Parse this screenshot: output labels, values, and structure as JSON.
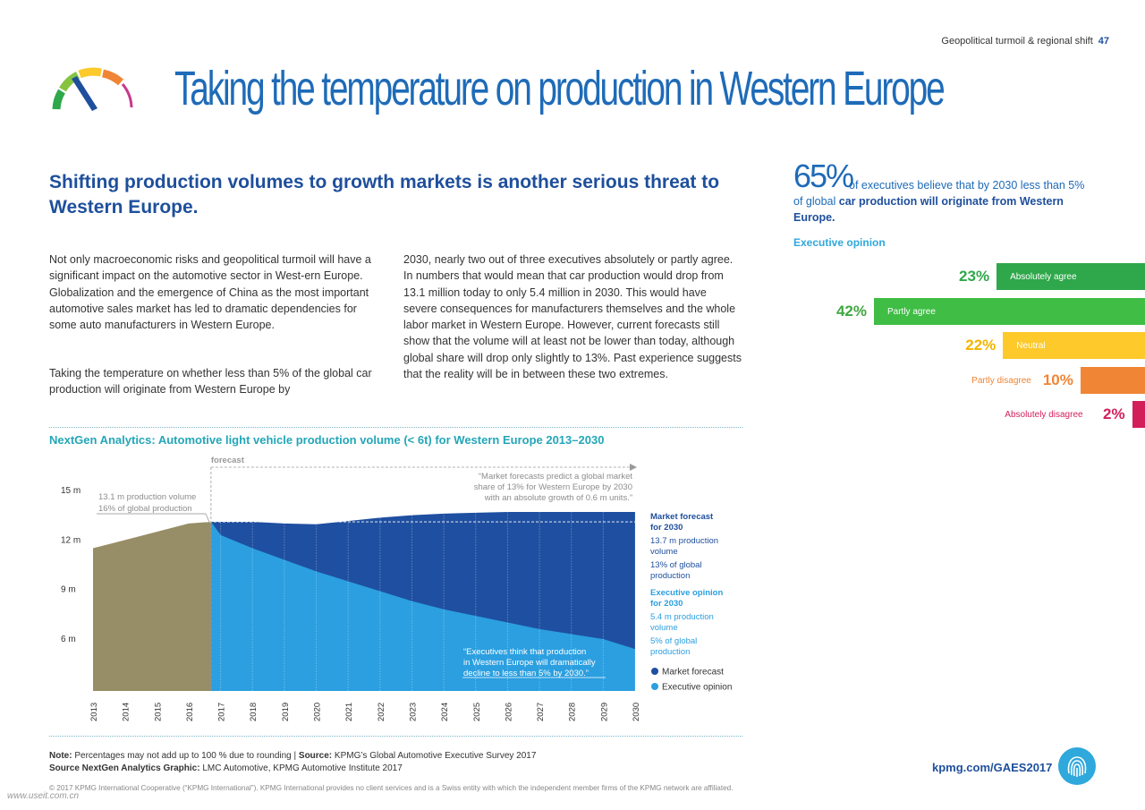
{
  "header": {
    "section": "Geopolitical turmoil & regional shift",
    "page_number": "47"
  },
  "title": "Taking the temperature on production in Western Europe",
  "icon": "thermometer-gauge-icon",
  "headline": "Shifting production volumes to growth markets is another serious threat to Western Europe.",
  "body": {
    "col1_p1": "Not only macroeconomic risks and geopolitical turmoil will have a significant impact on the automotive sector in West-ern Europe. Globalization and the emergence of China as the most important automotive sales market has led to dramatic dependencies for some auto manufacturers in Western Europe.",
    "col1_p2": "Taking the temperature on whether less than 5% of the global car production will originate from Western Europe by",
    "col2": "2030, nearly two out of three executives absolutely or partly agree. In numbers that would mean that car production would drop from 13.1 million today to only 5.4 million in 2030. This would have severe consequences for manufacturers themselves and the whole labor market in Western Europe. However, current forecasts still show that the volume will at least not be lower than today, although global share will drop only slightly to 13%. Past experience suggests that the reality will be in between these two extremes."
  },
  "stat": {
    "big": "65%",
    "lead": "of executives believe that by 2030 less than 5% of global",
    "bold": "car production will originate from Western Europe."
  },
  "opinion": {
    "title": "Executive opinion",
    "bars": [
      {
        "label": "Absolutely agree",
        "pct": "23%",
        "value": 23,
        "color": "#2ea84a",
        "pct_color": "#2ea84a",
        "label_color": "#ffffff",
        "label_inside": true
      },
      {
        "label": "Partly agree",
        "pct": "42%",
        "value": 42,
        "color": "#3fbd45",
        "pct_color": "#3fa83f",
        "label_color": "#ffffff",
        "label_inside": true
      },
      {
        "label": "Neutral",
        "pct": "22%",
        "value": 22,
        "color": "#fdc92b",
        "pct_color": "#f4b400",
        "label_color": "#ffffff",
        "label_inside": true
      },
      {
        "label": "Partly disagree",
        "pct": "10%",
        "value": 10,
        "color": "#f08536",
        "pct_color": "#f08536",
        "label_color": "#f08536",
        "label_inside": false
      },
      {
        "label": "Absolutely disagree",
        "pct": "2%",
        "value": 2,
        "color": "#d21f5a",
        "pct_color": "#d21f5a",
        "label_color": "#d21f5a",
        "label_inside": false
      }
    ]
  },
  "chart_data": {
    "type": "area",
    "title": "NextGen Analytics: Automotive light vehicle production volume (< 6t) for Western Europe 2013–2030",
    "x": [
      2013,
      2014,
      2015,
      2016,
      2017,
      2018,
      2019,
      2020,
      2021,
      2022,
      2023,
      2024,
      2025,
      2026,
      2027,
      2028,
      2029,
      2030
    ],
    "ytick_labels": [
      "6 m",
      "9 m",
      "12 m",
      "15 m"
    ],
    "ytick_values": [
      6,
      9,
      12,
      15
    ],
    "ylim": [
      3.4,
      15
    ],
    "series": [
      {
        "name": "Market forecast",
        "color": "#1f4fa0",
        "x": [
          2013,
          2014,
          2015,
          2016,
          2017,
          2018,
          2019,
          2020,
          2021,
          2022,
          2023,
          2024,
          2025,
          2026,
          2027,
          2028,
          2029,
          2030
        ],
        "values": [
          11.5,
          12,
          12.5,
          13,
          13.1,
          13.1,
          13,
          12.95,
          13.15,
          13.35,
          13.5,
          13.6,
          13.65,
          13.7,
          13.7,
          13.7,
          13.7,
          13.7
        ]
      },
      {
        "name": "Executive opinion",
        "color": "#2b9fe0",
        "x": [
          2016.7,
          2017,
          2018,
          2019,
          2020,
          2021,
          2022,
          2023,
          2024,
          2025,
          2026,
          2027,
          2028,
          2029,
          2030
        ],
        "values": [
          13.1,
          12.3,
          11.5,
          10.8,
          10.1,
          9.5,
          8.9,
          8.3,
          7.8,
          7.4,
          7,
          6.6,
          6.3,
          6,
          5.4
        ]
      }
    ],
    "history_color": "#978d66",
    "forecast_label": "forecast",
    "callouts": {
      "history": [
        "13.1 m production volume",
        "16% of global production"
      ],
      "market": [
        "“Market forecasts predict a global market",
        "share of 13% for Western Europe by 2030",
        "with an absolute growth of 0.6 m units.”"
      ],
      "exec": [
        "“Executives think that production",
        "in Western Europe will dramatically",
        "decline to less than 5% by 2030.”"
      ]
    },
    "right_labels": {
      "market_title": [
        "Market forecast",
        "for 2030"
      ],
      "market_lines": [
        "13.7 m production",
        "volume",
        "13% of global",
        "production"
      ],
      "exec_title": [
        "Executive opinion",
        "for 2030"
      ],
      "exec_lines": [
        "5.4 m production",
        "volume",
        "5% of global",
        "production"
      ]
    },
    "legend": [
      {
        "name": "Market forecast",
        "color": "#1f4fa0"
      },
      {
        "name": "Executive opinion",
        "color": "#2b9fe0"
      }
    ]
  },
  "footer": {
    "note_label": "Note:",
    "note_text": "Percentages may not add up to 100 % due to rounding |",
    "source_label": "Source:",
    "source_text": "KPMG’s Global Automotive Executive Survey 2017",
    "source2_label": "Source NextGen Analytics Graphic:",
    "source2_text": "LMC Automotive, KPMG Automotive Institute 2017",
    "url": "kpmg.com/GAES2017",
    "copyright": "© 2017 KPMG International Cooperative (“KPMG International”). KPMG International provides no client services and is a Swiss entity with which the independent member firms of the KPMG network are affiliated.",
    "watermark": "www.useit.com.cn",
    "fingerprint_icon": "fingerprint-icon"
  }
}
